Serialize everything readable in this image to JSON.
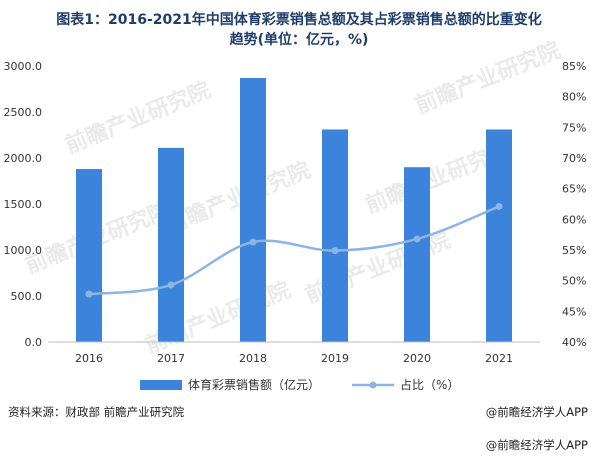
{
  "title_line1": "图表1：2016-2021年中国体育彩票销售总额及其占彩票销售总额的比重变化",
  "title_line2": "趋势(单位：亿元，%)",
  "watermark_text": "前瞻产业研究院",
  "footer": {
    "source": "资料来源：财政部 前瞻产业研究院",
    "brand": "@前瞻经济学人APP"
  },
  "colors": {
    "bar": "#3c83dc",
    "line": "#8db4e2",
    "title": "#1f3d6b"
  },
  "chart_data": {
    "type": "bar",
    "categories": [
      "2016",
      "2017",
      "2018",
      "2019",
      "2020",
      "2021"
    ],
    "series": [
      {
        "name": "体育彩票销售额（亿元）",
        "type": "bar",
        "axis": "left",
        "values": [
          1880,
          2110,
          2870,
          2310,
          1900,
          2310
        ]
      },
      {
        "name": "占比（%）",
        "type": "line",
        "axis": "right",
        "values": [
          47.8,
          49.3,
          56.3,
          54.9,
          56.8,
          62.1
        ]
      }
    ],
    "left_axis": {
      "min": 0,
      "max": 3000,
      "ticks": [
        "0.0",
        "500.0",
        "1000.0",
        "1500.0",
        "2000.0",
        "2500.0",
        "3000.0"
      ]
    },
    "right_axis": {
      "min": 40,
      "max": 85,
      "ticks": [
        "40%",
        "45%",
        "50%",
        "55%",
        "60%",
        "65%",
        "70%",
        "75%",
        "80%",
        "85%"
      ]
    },
    "grid": false,
    "legend_position": "bottom"
  }
}
